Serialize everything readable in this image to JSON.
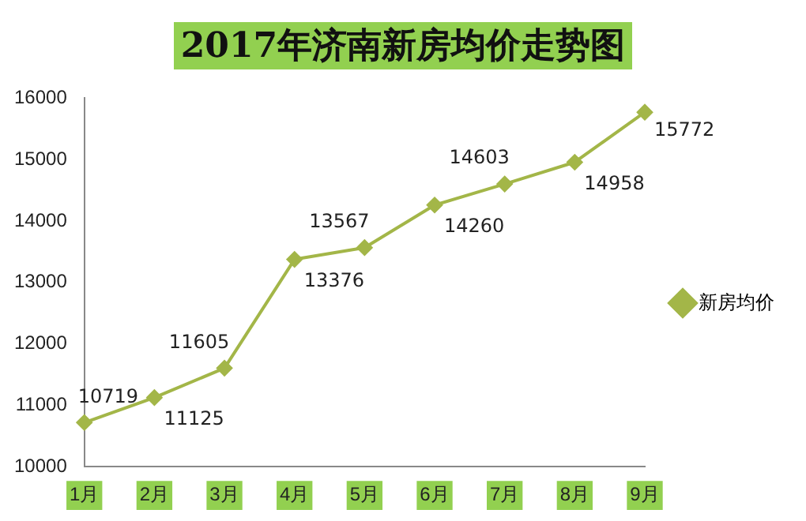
{
  "chart_data": {
    "type": "line",
    "title": "2017年济南新房均价走势图",
    "categories": [
      "1月",
      "2月",
      "3月",
      "4月",
      "5月",
      "6月",
      "7月",
      "8月",
      "9月"
    ],
    "series": [
      {
        "name": "新房均价",
        "color": "#a3b648",
        "values": [
          10719,
          11125,
          11605,
          13376,
          13567,
          14260,
          14603,
          14958,
          15772
        ]
      }
    ],
    "ylim": [
      10000,
      16000
    ],
    "yticks": [
      10000,
      11000,
      12000,
      13000,
      14000,
      15000,
      16000
    ],
    "grid": false,
    "legend": "right",
    "marker": "diamond",
    "data_labels": true
  }
}
